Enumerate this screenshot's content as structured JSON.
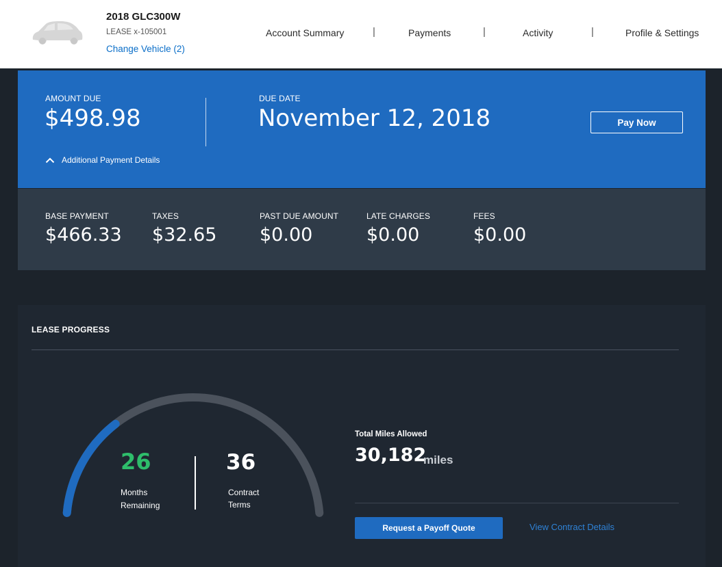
{
  "vehicle": {
    "title": "2018 GLC300W",
    "lease_id": "LEASE x-105001",
    "change_link": "Change Vehicle (2)"
  },
  "nav": {
    "items": [
      "Account Summary",
      "Payments",
      "Activity",
      "Profile & Settings"
    ],
    "separator": "|"
  },
  "due": {
    "amount_label": "AMOUNT DUE",
    "amount": "$498.98",
    "date_label": "DUE DATE",
    "date": "November 12, 2018",
    "pay_button": "Pay Now",
    "details_toggle": "Additional Payment Details"
  },
  "breakdown": [
    {
      "label": "BASE PAYMENT",
      "value": "$466.33"
    },
    {
      "label": "TAXES",
      "value": "$32.65"
    },
    {
      "label": "PAST DUE AMOUNT",
      "value": "$0.00"
    },
    {
      "label": "LATE CHARGES",
      "value": "$0.00"
    },
    {
      "label": "FEES",
      "value": "$0.00"
    }
  ],
  "lease": {
    "title": "LEASE PROGRESS",
    "months_remaining": "26",
    "months_label": "Months Remaining",
    "contract_terms": "36",
    "terms_label": "Contract Terms",
    "progress_fraction": 0.2778,
    "miles_label": "Total Miles Allowed",
    "miles_value": "30,182",
    "miles_unit": "miles",
    "payoff_button": "Request a Payoff Quote",
    "contract_link": "View Contract Details"
  },
  "colors": {
    "accent_blue": "#1f6bc0",
    "remaining_green": "#2ebd6b",
    "gauge_track": "#4b525c"
  },
  "icons": {
    "vehicle": "car-silhouette-icon",
    "toggle": "chevron-up-icon"
  }
}
